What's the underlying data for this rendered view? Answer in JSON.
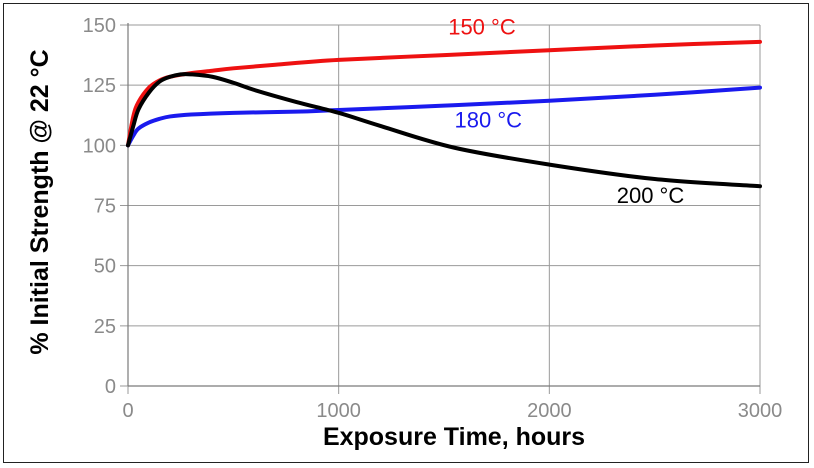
{
  "chart_data": {
    "type": "line",
    "title": "",
    "xlabel": "Exposure Time, hours",
    "ylabel": "% Initial Strength @ 22 °C",
    "xlim": [
      0,
      3000
    ],
    "ylim": [
      0,
      150
    ],
    "x_ticks": [
      "0",
      "1000",
      "2000",
      "3000"
    ],
    "y_ticks": [
      "0",
      "25",
      "50",
      "75",
      "100",
      "125",
      "150"
    ],
    "grid": true,
    "legend": "none",
    "series": [
      {
        "name": "150 °C",
        "color": "#ee1111",
        "x": [
          0,
          25,
          50,
          100,
          150,
          200,
          300,
          400,
          500,
          700,
          1000,
          1500,
          2000,
          2500,
          3000
        ],
        "y": [
          100,
          112,
          118,
          124,
          127,
          128.5,
          130,
          131,
          132,
          133.5,
          135.5,
          137.5,
          139.5,
          141.5,
          143
        ]
      },
      {
        "name": "180 °C",
        "color": "#1a1aee",
        "x": [
          0,
          25,
          50,
          100,
          150,
          200,
          300,
          500,
          800,
          1000,
          1500,
          2000,
          2500,
          3000
        ],
        "y": [
          100,
          104,
          107,
          109.5,
          111,
          112,
          112.8,
          113.5,
          114,
          114.7,
          116.5,
          118.5,
          121,
          124
        ]
      },
      {
        "name": "200 °C",
        "color": "#000000",
        "x": [
          0,
          25,
          50,
          100,
          150,
          200,
          250,
          300,
          400,
          500,
          600,
          800,
          1000,
          1200,
          1550,
          2000,
          2500,
          3000
        ],
        "y": [
          100,
          108,
          115,
          122,
          126.5,
          128.5,
          129.5,
          129.5,
          128.5,
          126,
          123,
          118,
          113.5,
          108,
          99,
          92,
          86,
          83
        ]
      }
    ],
    "annotations": [
      {
        "text": "150 °C",
        "x": 1520,
        "y": 146,
        "color": "#ee1111"
      },
      {
        "text": "180 °C",
        "x": 1550,
        "y": 107.5,
        "color": "#1a1aee"
      },
      {
        "text": "200 °C",
        "x": 2320,
        "y": 76,
        "color": "#000000"
      }
    ]
  }
}
